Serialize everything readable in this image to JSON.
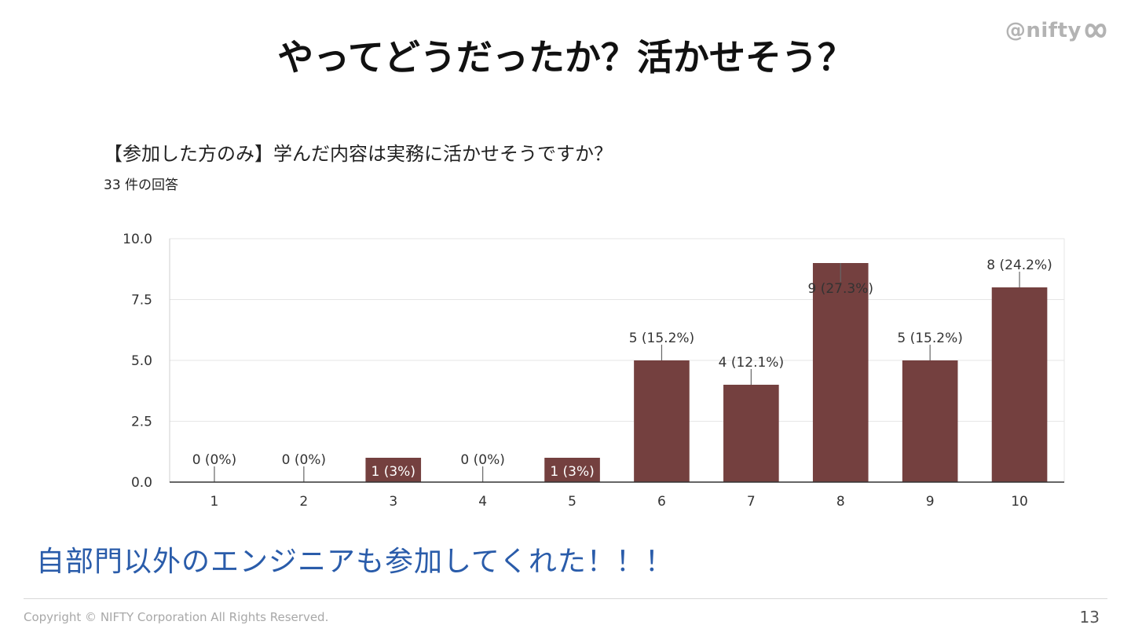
{
  "slide": {
    "title": "やってどうだったか？活かせそう？",
    "logo_text": "@nifty",
    "logo_icon": "nifty-infinity-icon",
    "message": "自部門以外のエンジニアも参加してくれた！！！",
    "copyright": "Copyright © NIFTY Corporation All Rights Reserved.",
    "page_number": "13"
  },
  "chart_data": {
    "type": "bar",
    "title": "【参加した方のみ】学んだ内容は実務に活かせそうですか？",
    "subtitle": "33 件の回答",
    "categories": [
      "1",
      "2",
      "3",
      "4",
      "5",
      "6",
      "7",
      "8",
      "9",
      "10"
    ],
    "values": [
      0,
      0,
      1,
      0,
      1,
      5,
      4,
      9,
      5,
      8
    ],
    "data_labels": [
      "0 (0%)",
      "0 (0%)",
      "1 (3%)",
      "0 (0%)",
      "1 (3%)",
      "5 (15.2%)",
      "4 (12.1%)",
      "9 (27.3%)",
      "5 (15.2%)",
      "8 (24.2%)"
    ],
    "y_ticks": [
      "0.0",
      "2.5",
      "5.0",
      "7.5",
      "10.0"
    ],
    "ylim": [
      0,
      10
    ],
    "xlabel": "",
    "ylabel": "",
    "grid": true,
    "legend": false,
    "bar_color": "#74403f",
    "grid_color": "#e6e6e6",
    "axis_color": "#333333"
  }
}
